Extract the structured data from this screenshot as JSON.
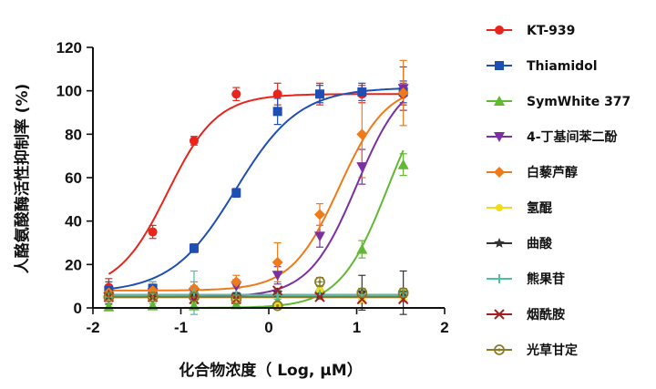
{
  "chart_data": {
    "type": "scatter",
    "xlabel": "化合物浓度（ Log, μM）",
    "ylabel": "人酪氨酸酶活性抑制率 (%)",
    "xlim": [
      -2,
      2
    ],
    "ylim": [
      0,
      120
    ],
    "xticks": [
      "-2",
      "-1",
      "0",
      "1",
      "2"
    ],
    "yticks": [
      "0",
      "20",
      "40",
      "60",
      "80",
      "100",
      "120"
    ],
    "grid": false,
    "legend_position": "right",
    "x": [
      -1.82,
      -1.32,
      -0.85,
      -0.37,
      0.1,
      0.58,
      1.06,
      1.53
    ],
    "series": [
      {
        "name": "KT-939",
        "color": "#e8241c",
        "marker": "circle",
        "values": [
          9.5,
          35,
          77,
          98.5,
          98.5,
          98.5,
          98.5,
          98.5
        ],
        "errors": [
          4,
          3,
          2,
          3,
          5,
          5,
          4,
          5
        ],
        "fit": {
          "bottom": 8,
          "top": 98.5,
          "logEC50": -1.15,
          "hill": 1.55
        }
      },
      {
        "name": "Thiamidol",
        "color": "#1f4fb5",
        "marker": "square",
        "values": [
          8,
          9,
          27.5,
          53,
          90.5,
          98.5,
          99.5,
          99.5
        ],
        "errors": [
          4,
          3,
          2,
          2,
          6,
          4,
          4,
          5
        ],
        "fit": {
          "bottom": 7,
          "top": 101.5,
          "logEC50": -0.38,
          "hill": 1.2
        }
      },
      {
        "name": "SymWhite 377",
        "color": "#61b832",
        "marker": "triangle",
        "values": [
          0.5,
          1,
          1,
          1.5,
          3,
          9,
          27,
          66
        ],
        "errors": [
          1,
          1,
          1,
          1,
          2,
          3,
          4,
          5
        ],
        "fit": {
          "bottom": 0,
          "top": 110,
          "logEC50": 1.35,
          "hill": 1.6
        }
      },
      {
        "name": "4-丁基间苯二酚",
        "color": "#7b2fa0",
        "marker": "triangle-down",
        "values": [
          5,
          7,
          7,
          10,
          15,
          33,
          65,
          101
        ],
        "errors": [
          3,
          3,
          3,
          3,
          4,
          5,
          8,
          10
        ],
        "fit": {
          "bottom": 5,
          "top": 108,
          "logEC50": 1.0,
          "hill": 1.6
        }
      },
      {
        "name": "白藜芦醇",
        "color": "#f07a18",
        "marker": "diamond",
        "values": [
          7,
          8,
          9,
          12,
          21,
          43,
          80,
          99
        ],
        "errors": [
          3,
          3,
          3,
          3,
          9,
          5,
          20,
          15
        ],
        "fit": {
          "bottom": 8,
          "top": 103,
          "logEC50": 0.8,
          "hill": 1.6
        }
      },
      {
        "name": "氢醌",
        "color": "#f0dc1a",
        "marker": "circle-small",
        "values": [
          5,
          5,
          6,
          4,
          1,
          8,
          4,
          6
        ],
        "errors": [
          1,
          1,
          1,
          1,
          1,
          2,
          2,
          2
        ],
        "fit": {
          "flat": 5
        }
      },
      {
        "name": "曲酸",
        "color": "#333333",
        "marker": "star",
        "values": [
          6,
          5,
          6,
          6,
          7,
          6,
          7,
          7
        ],
        "errors": [
          1,
          1,
          1,
          1,
          1,
          1,
          8,
          10
        ],
        "fit": {
          "flat": 6
        }
      },
      {
        "name": "熊果苷",
        "color": "#4cbfa4",
        "marker": "plus",
        "values": [
          5,
          6,
          7,
          6,
          6,
          6,
          6,
          7
        ],
        "errors": [
          1,
          6,
          10,
          4,
          2,
          2,
          2,
          2
        ],
        "fit": {
          "flat": 6
        }
      },
      {
        "name": "烟酰胺",
        "color": "#a32020",
        "marker": "x",
        "values": [
          5,
          5,
          4,
          4,
          8,
          5,
          4,
          4
        ],
        "errors": [
          1,
          1,
          1,
          1,
          1,
          1,
          1,
          1
        ],
        "fit": {
          "flat": 5
        }
      },
      {
        "name": "光草甘定",
        "color": "#8c7a28",
        "marker": "circle-open",
        "values": [
          5,
          5,
          5,
          4,
          1,
          12,
          7,
          7
        ],
        "errors": [
          2,
          2,
          2,
          2,
          1,
          2,
          2,
          2
        ],
        "fit": {
          "flat": 5
        }
      }
    ]
  }
}
